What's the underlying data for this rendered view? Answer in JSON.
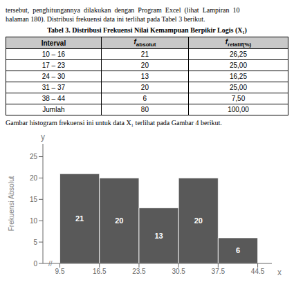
{
  "chart_data": [
    {
      "type": "table",
      "annotations": [
        "tersebut,  penghitungannya  dilakukan  dengan  Program  Excel  (lihat  Lampiran  10",
        "halaman 180). Distribusi frekuensi data ini terlihat pada Tabel 3 berikut."
      ],
      "title": "Tabel 3. Distribusi Frekuensi Nilai Kemampuan Berpikir Logis (X₁)",
      "columns": [
        "Interval",
        "f absolut",
        "f relatif(%)"
      ],
      "rows": [
        [
          "10 – 16",
          "21",
          "26,25"
        ],
        [
          "17 – 23",
          "20",
          "25,00"
        ],
        [
          "24 – 30",
          "13",
          "16,25"
        ],
        [
          "31 – 37",
          "20",
          "25,00"
        ],
        [
          "38 – 44",
          "6",
          "7,50"
        ],
        [
          "Jumlah",
          "80",
          "100,00"
        ]
      ]
    },
    {
      "type": "histogram",
      "title": "Gambar histogram frekuensi ini untuk data X₁ terlihat pada Gambar 4 berikut.",
      "bins": [
        9.5,
        16.5,
        23.5,
        30.5,
        37.5,
        44.5
      ],
      "values": [
        21,
        20,
        13,
        20,
        6
      ],
      "color": "#595959",
      "data_labels": true,
      "xlabel": "x",
      "ylabel": "Frekuensi Absolut",
      "annotations": [
        "y",
        "//"
      ],
      "xlim": [
        6.5,
        47
      ],
      "xticks": [
        9.5,
        16.5,
        23.5,
        30.5,
        37.5,
        44.5
      ],
      "ylim": [
        0,
        28
      ],
      "yticks": [
        0,
        5,
        10,
        15,
        20,
        25
      ]
    }
  ]
}
